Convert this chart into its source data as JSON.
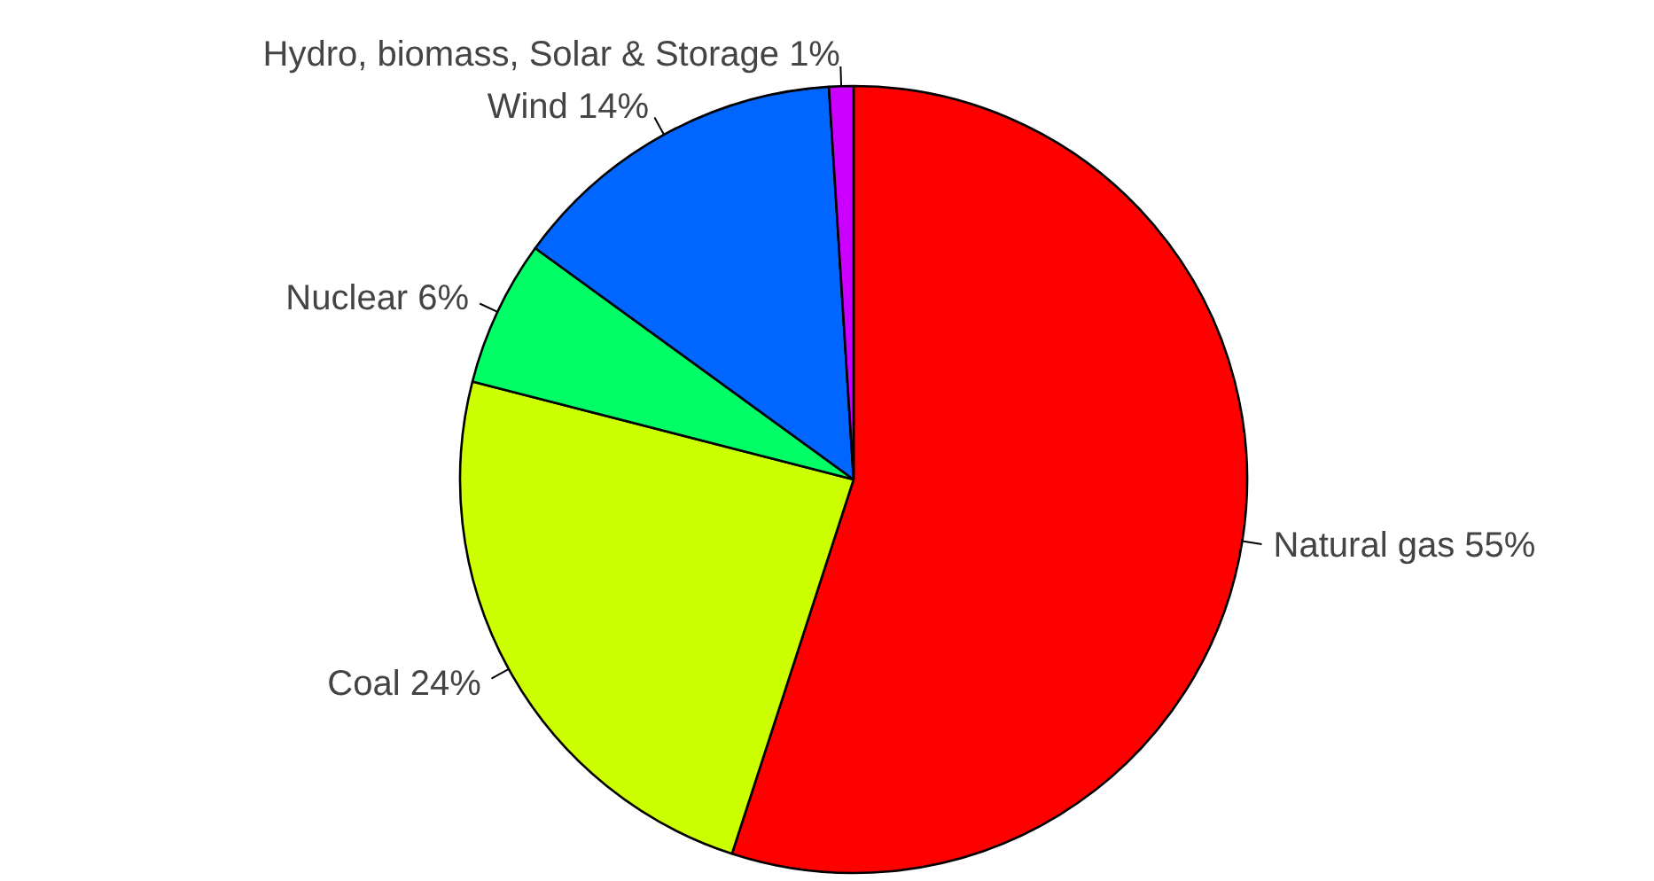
{
  "chart_data": {
    "type": "pie",
    "categories": [
      "Natural gas 55%",
      "Coal 24%",
      "Nuclear 6%",
      "Wind 14%",
      "Hydro, biomass, Solar & Storage 1%"
    ],
    "values": [
      55,
      24,
      6,
      14,
      1
    ],
    "colors": [
      "#ff0000",
      "#ccff00",
      "#00ff66",
      "#0066ff",
      "#cc00ff"
    ]
  }
}
